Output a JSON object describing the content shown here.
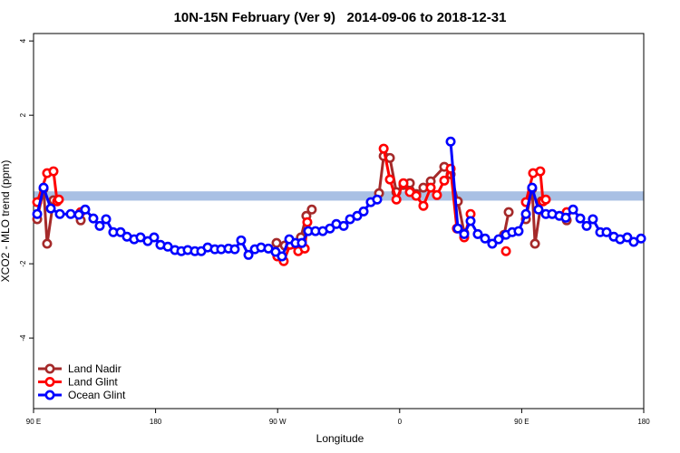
{
  "chart_data": {
    "type": "line",
    "title": "10N-15N February (Ver 9)   2014-09-06 to 2018-12-31",
    "x_label": "Longitude",
    "y_label": "XCO2 - MLO trend (ppm)",
    "xlim": [
      90,
      540
    ],
    "ylim": [
      -5.9,
      4.2
    ],
    "xticks": [
      {
        "value": 90,
        "label": "90 E"
      },
      180,
      {
        "value": 270,
        "label": "90 W"
      },
      {
        "value": 360,
        "label": "0"
      },
      {
        "value": 450,
        "label": "90 E"
      },
      {
        "value": 540,
        "label": "180"
      }
    ],
    "yticks": [
      -4,
      -2,
      2,
      4
    ],
    "reference_band": {
      "ymin": -0.3,
      "ymax": -0.05,
      "color": "#a9c0e4"
    },
    "legend": "bottom-left",
    "series": [
      {
        "name": "Land Nadir",
        "color": "#a52a2a",
        "x": [
          92.7,
          97.4,
          100.0,
          104.7,
          null,
          124.8,
          null,
          269.2,
          275.3,
          287.2,
          291.2,
          295.2,
          null,
          344.8,
          348.2,
          352.8,
          357.6,
          362.8,
          367.5,
          372.2,
          377.5,
          382.9,
          392.9,
          397.6,
          402.9,
          407.6,
          null,
          437.0,
          440.4,
          null,
          453.1,
          457.7,
          459.8,
          464.5,
          null,
          483.2
        ],
        "values": [
          -0.8,
          0.02,
          -1.46,
          -0.29,
          null,
          -0.83,
          null,
          -1.44,
          -1.51,
          -1.29,
          -0.71,
          -0.54,
          null,
          -0.1,
          0.9,
          0.85,
          -0.07,
          0.12,
          0.17,
          -0.12,
          0.05,
          0.22,
          0.61,
          0.41,
          -0.32,
          -1.17,
          null,
          -1.22,
          -0.61,
          null,
          -0.8,
          0.02,
          -1.46,
          -0.32,
          null,
          -0.83
        ]
      },
      {
        "name": "Land Glint",
        "color": "#ff0000",
        "x": [
          92.7,
          100.0,
          104.7,
          107.4,
          108.7,
          null,
          124.8,
          null,
          269.8,
          274.5,
          279.2,
          285.2,
          290.0,
          291.9,
          null,
          348.2,
          352.8,
          357.6,
          362.8,
          367.5,
          372.2,
          377.5,
          382.9,
          387.5,
          392.9,
          397.6,
          402.2,
          407.6,
          412.3,
          null,
          438.4,
          null,
          453.1,
          458.4,
          463.7,
          465.8,
          467.8,
          null,
          483.2
        ],
        "values": [
          -0.34,
          0.44,
          0.49,
          -0.32,
          -0.27,
          null,
          -0.61,
          null,
          -1.8,
          -1.93,
          -1.49,
          -1.66,
          -1.59,
          -0.88,
          null,
          1.1,
          0.27,
          -0.27,
          0.17,
          -0.07,
          -0.17,
          -0.44,
          0.05,
          -0.15,
          0.24,
          0.56,
          -1.05,
          -1.29,
          -0.66,
          null,
          -1.66,
          null,
          -0.34,
          0.44,
          0.49,
          -0.32,
          -0.27,
          null,
          -0.61
        ]
      },
      {
        "name": "Ocean Glint",
        "color": "#0000ff",
        "x": [
          92.7,
          97.4,
          102.7,
          109.4,
          117.4,
          123.4,
          128.1,
          134.1,
          138.8,
          143.5,
          148.8,
          154.2,
          158.9,
          164.2,
          168.9,
          174.2,
          178.9,
          183.6,
          189.0,
          194.3,
          199.0,
          203.7,
          209.0,
          213.7,
          218.4,
          223.7,
          228.4,
          233.8,
          238.4,
          243.1,
          248.5,
          253.2,
          257.8,
          263.2,
          268.5,
          273.2,
          278.6,
          283.2,
          287.9,
          292.6,
          297.9,
          303.3,
          308.6,
          313.3,
          318.7,
          323.4,
          328.7,
          333.4,
          338.7,
          343.4,
          null,
          397.6,
          402.9,
          407.6,
          412.3,
          417.6,
          423.0,
          428.3,
          433.0,
          438.4,
          443.0,
          447.7,
          453.1,
          457.7,
          462.4,
          467.8,
          472.5,
          477.8,
          482.5,
          487.9,
          493.2,
          497.9,
          502.5,
          507.9,
          512.6,
          517.9,
          522.6,
          527.9,
          532.6,
          538.0
        ],
        "values": [
          -0.66,
          0.05,
          -0.51,
          -0.66,
          -0.66,
          -0.68,
          -0.54,
          -0.78,
          -0.98,
          -0.8,
          -1.15,
          -1.15,
          -1.27,
          -1.34,
          -1.29,
          -1.39,
          -1.29,
          -1.49,
          -1.54,
          -1.63,
          -1.66,
          -1.63,
          -1.66,
          -1.66,
          -1.56,
          -1.61,
          -1.61,
          -1.59,
          -1.61,
          -1.37,
          -1.76,
          -1.61,
          -1.56,
          -1.59,
          -1.68,
          -1.8,
          -1.34,
          -1.44,
          -1.44,
          -1.12,
          -1.12,
          -1.12,
          -1.05,
          -0.93,
          -0.98,
          -0.8,
          -0.71,
          -0.59,
          -0.34,
          -0.27,
          null,
          1.29,
          -1.05,
          -1.2,
          -0.85,
          -1.2,
          -1.32,
          -1.46,
          -1.34,
          -1.22,
          -1.15,
          -1.12,
          -0.66,
          0.05,
          -0.54,
          -0.66,
          -0.66,
          -0.71,
          -0.76,
          -0.54,
          -0.78,
          -0.98,
          -0.8,
          -1.15,
          -1.15,
          -1.27,
          -1.34,
          -1.29,
          -1.41,
          -1.32
        ]
      }
    ]
  }
}
